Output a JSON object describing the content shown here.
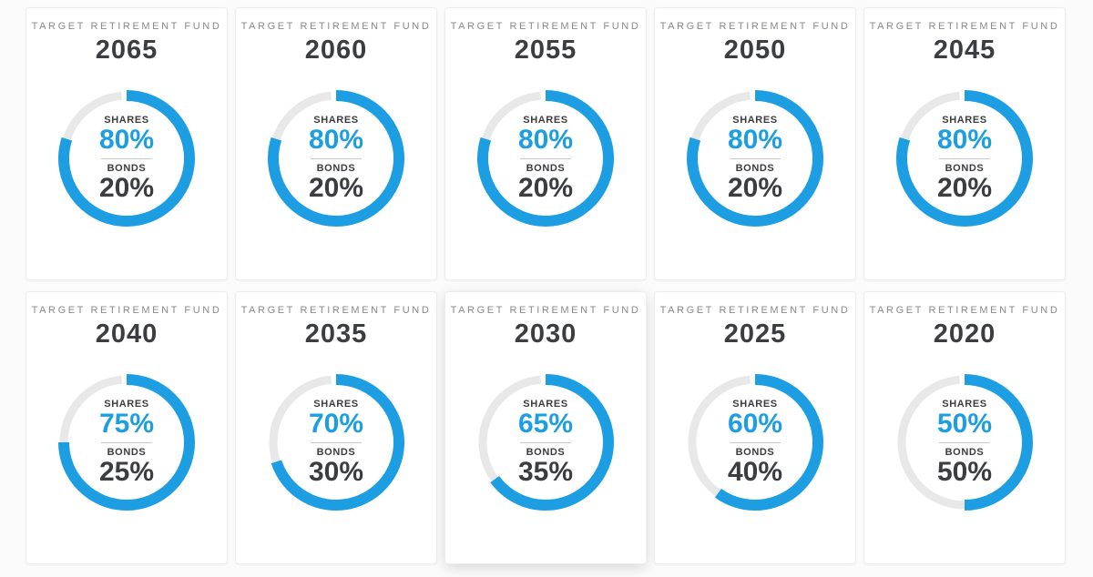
{
  "colors": {
    "accent_blue": "#1d9ee2",
    "track_gray": "#e8e8e9",
    "text_dark": "#3b3d40",
    "label_gray": "#87898c"
  },
  "cards": [
    {
      "label": "TARGET RETIREMENT FUND",
      "year": "2065",
      "shares_label": "SHARES",
      "shares_value": "80%",
      "shares_pct": 80,
      "bonds_label": "BONDS",
      "bonds_value": "20%",
      "bonds_pct": 20
    },
    {
      "label": "TARGET RETIREMENT FUND",
      "year": "2060",
      "shares_label": "SHARES",
      "shares_value": "80%",
      "shares_pct": 80,
      "bonds_label": "BONDS",
      "bonds_value": "20%",
      "bonds_pct": 20
    },
    {
      "label": "TARGET RETIREMENT FUND",
      "year": "2055",
      "shares_label": "SHARES",
      "shares_value": "80%",
      "shares_pct": 80,
      "bonds_label": "BONDS",
      "bonds_value": "20%",
      "bonds_pct": 20
    },
    {
      "label": "TARGET RETIREMENT FUND",
      "year": "2050",
      "shares_label": "SHARES",
      "shares_value": "80%",
      "shares_pct": 80,
      "bonds_label": "BONDS",
      "bonds_value": "20%",
      "bonds_pct": 20
    },
    {
      "label": "TARGET RETIREMENT FUND",
      "year": "2045",
      "shares_label": "SHARES",
      "shares_value": "80%",
      "shares_pct": 80,
      "bonds_label": "BONDS",
      "bonds_value": "20%",
      "bonds_pct": 20
    },
    {
      "label": "TARGET RETIREMENT FUND",
      "year": "2040",
      "shares_label": "SHARES",
      "shares_value": "75%",
      "shares_pct": 75,
      "bonds_label": "BONDS",
      "bonds_value": "25%",
      "bonds_pct": 25
    },
    {
      "label": "TARGET RETIREMENT FUND",
      "year": "2035",
      "shares_label": "SHARES",
      "shares_value": "70%",
      "shares_pct": 70,
      "bonds_label": "BONDS",
      "bonds_value": "30%",
      "bonds_pct": 30
    },
    {
      "label": "TARGET RETIREMENT FUND",
      "year": "2030",
      "shares_label": "SHARES",
      "shares_value": "65%",
      "shares_pct": 65,
      "bonds_label": "BONDS",
      "bonds_value": "35%",
      "bonds_pct": 35,
      "highlighted": true
    },
    {
      "label": "TARGET RETIREMENT FUND",
      "year": "2025",
      "shares_label": "SHARES",
      "shares_value": "60%",
      "shares_pct": 60,
      "bonds_label": "BONDS",
      "bonds_value": "40%",
      "bonds_pct": 40
    },
    {
      "label": "TARGET RETIREMENT FUND",
      "year": "2020",
      "shares_label": "SHARES",
      "shares_value": "50%",
      "shares_pct": 50,
      "bonds_label": "BONDS",
      "bonds_value": "50%",
      "bonds_pct": 50
    }
  ],
  "chart_data": [
    {
      "type": "pie",
      "title": "TARGET RETIREMENT FUND 2065",
      "labels": [
        "SHARES",
        "BONDS"
      ],
      "values": [
        80,
        20
      ]
    },
    {
      "type": "pie",
      "title": "TARGET RETIREMENT FUND 2060",
      "labels": [
        "SHARES",
        "BONDS"
      ],
      "values": [
        80,
        20
      ]
    },
    {
      "type": "pie",
      "title": "TARGET RETIREMENT FUND 2055",
      "labels": [
        "SHARES",
        "BONDS"
      ],
      "values": [
        80,
        20
      ]
    },
    {
      "type": "pie",
      "title": "TARGET RETIREMENT FUND 2050",
      "labels": [
        "SHARES",
        "BONDS"
      ],
      "values": [
        80,
        20
      ]
    },
    {
      "type": "pie",
      "title": "TARGET RETIREMENT FUND 2045",
      "labels": [
        "SHARES",
        "BONDS"
      ],
      "values": [
        80,
        20
      ]
    },
    {
      "type": "pie",
      "title": "TARGET RETIREMENT FUND 2040",
      "labels": [
        "SHARES",
        "BONDS"
      ],
      "values": [
        75,
        25
      ]
    },
    {
      "type": "pie",
      "title": "TARGET RETIREMENT FUND 2035",
      "labels": [
        "SHARES",
        "BONDS"
      ],
      "values": [
        70,
        30
      ]
    },
    {
      "type": "pie",
      "title": "TARGET RETIREMENT FUND 2030",
      "labels": [
        "SHARES",
        "BONDS"
      ],
      "values": [
        65,
        35
      ]
    },
    {
      "type": "pie",
      "title": "TARGET RETIREMENT FUND 2025",
      "labels": [
        "SHARES",
        "BONDS"
      ],
      "values": [
        60,
        40
      ]
    },
    {
      "type": "pie",
      "title": "TARGET RETIREMENT FUND 2020",
      "labels": [
        "SHARES",
        "BONDS"
      ],
      "values": [
        50,
        50
      ]
    }
  ]
}
